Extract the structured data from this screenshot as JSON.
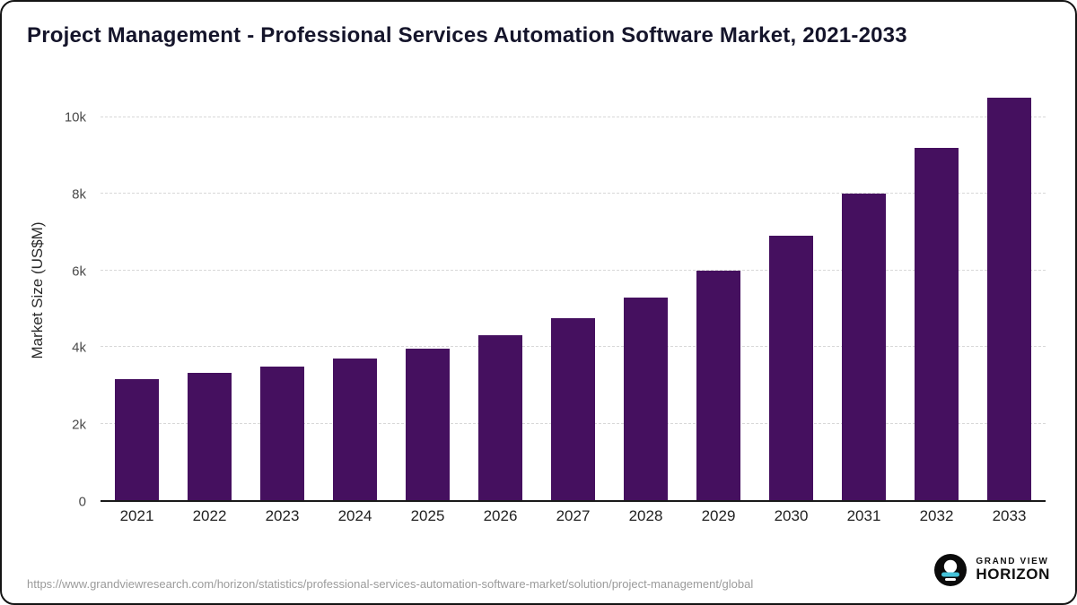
{
  "title": "Project Management - Professional Services Automation Software Market, 2021-2033",
  "chart_data": {
    "type": "bar",
    "categories": [
      "2021",
      "2022",
      "2023",
      "2024",
      "2025",
      "2026",
      "2027",
      "2028",
      "2029",
      "2030",
      "2031",
      "2032",
      "2033"
    ],
    "values": [
      3150,
      3320,
      3480,
      3700,
      3950,
      4300,
      4750,
      5300,
      6000,
      6900,
      8000,
      9200,
      10500
    ],
    "title": "Project Management - Professional Services Automation Software Market, 2021-2033",
    "xlabel": "",
    "ylabel": "Market Size (US$M)",
    "ylim": [
      0,
      11000
    ],
    "yticks": [
      {
        "value": 0,
        "label": "0"
      },
      {
        "value": 2000,
        "label": "2k"
      },
      {
        "value": 4000,
        "label": "4k"
      },
      {
        "value": 6000,
        "label": "6k"
      },
      {
        "value": 8000,
        "label": "8k"
      },
      {
        "value": 10000,
        "label": "10k"
      }
    ],
    "grid": "dashed-horizontal",
    "legend": "none",
    "bar_color": "#45105f"
  },
  "footer": {
    "source_url": "https://www.grandviewresearch.com/horizon/statistics/professional-services-automation-software-market/solution/project-management/global",
    "logo": {
      "brand_top": "GRAND VIEW",
      "brand_bottom": "HORIZON",
      "icon": "horizon-eclipse-icon",
      "icon_accent_color": "#45c2d8"
    }
  }
}
